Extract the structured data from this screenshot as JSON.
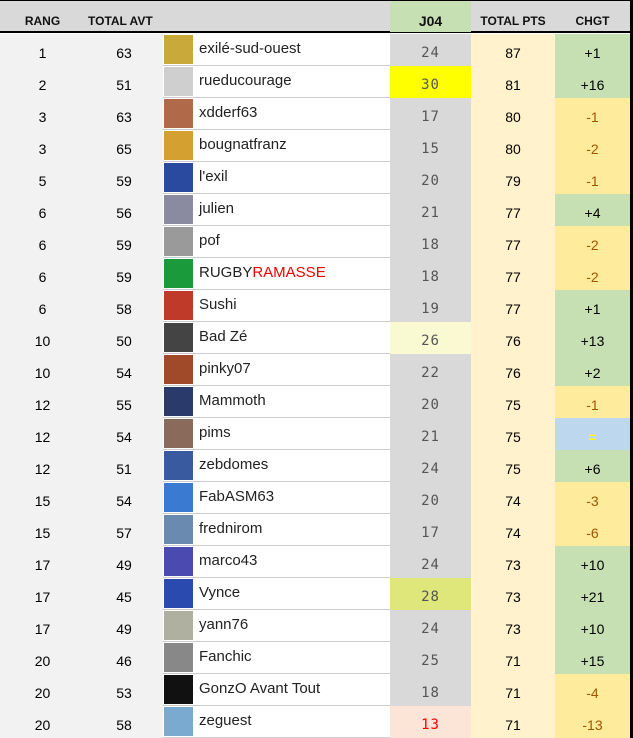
{
  "headers": {
    "rang": "RANG",
    "total_avt": "TOTAL AVT",
    "j04": "J04",
    "total_pts": "TOTAL PTS",
    "chgt": "CHGT"
  },
  "colors": {
    "positive": "#c6e0b4",
    "negative": "#ffeb9c",
    "equal": "#bdd7ee",
    "j04_default": "#d9d9d9"
  },
  "rows": [
    {
      "rang": "1",
      "avt": "63",
      "name": "exilé-sud-ouest",
      "j04": "24",
      "pts": "87",
      "chgt": "+1",
      "avatar": "#c9a93a"
    },
    {
      "rang": "2",
      "avt": "51",
      "name": "rueducourage",
      "j04": "30",
      "pts": "81",
      "chgt": "+16",
      "j04_bg": "#ffff00",
      "avatar": "#cfcfcf"
    },
    {
      "rang": "3",
      "avt": "63",
      "name": "xdderf63",
      "j04": "17",
      "pts": "80",
      "chgt": "-1",
      "avatar": "#b06a4a"
    },
    {
      "rang": "3",
      "avt": "65",
      "name": "bougnatfranz",
      "j04": "15",
      "pts": "80",
      "chgt": "-2",
      "avatar": "#d4a030"
    },
    {
      "rang": "5",
      "avt": "59",
      "name": "l'exil",
      "j04": "20",
      "pts": "79",
      "chgt": "-1",
      "avatar": "#2a4aa0"
    },
    {
      "rang": "6",
      "avt": "56",
      "name": "julien",
      "j04": "21",
      "pts": "77",
      "chgt": "+4",
      "avatar": "#8a8aa0"
    },
    {
      "rang": "6",
      "avt": "59",
      "name": "pof",
      "j04": "18",
      "pts": "77",
      "chgt": "-2",
      "avatar": "#9a9a9a"
    },
    {
      "rang": "6",
      "avt": "59",
      "name": "RUGBY",
      "name_red": "RAMASSE",
      "j04": "18",
      "pts": "77",
      "chgt": "-2",
      "avatar": "#1a9a3a"
    },
    {
      "rang": "6",
      "avt": "58",
      "name": "Sushi",
      "j04": "19",
      "pts": "77",
      "chgt": "+1",
      "avatar": "#c03a2a"
    },
    {
      "rang": "10",
      "avt": "50",
      "name": "Bad Zé",
      "j04": "26",
      "pts": "76",
      "chgt": "+13",
      "j04_bg": "#f9fad2",
      "avatar": "#444"
    },
    {
      "rang": "10",
      "avt": "54",
      "name": "pinky07",
      "j04": "22",
      "pts": "76",
      "chgt": "+2",
      "avatar": "#a04a2a"
    },
    {
      "rang": "12",
      "avt": "55",
      "name": "Mammoth",
      "j04": "20",
      "pts": "75",
      "chgt": "-1",
      "avatar": "#2a3a6a"
    },
    {
      "rang": "12",
      "avt": "54",
      "name": "pims",
      "j04": "21",
      "pts": "75",
      "chgt": "=",
      "avatar": "#8a6a5a"
    },
    {
      "rang": "12",
      "avt": "51",
      "name": "zebdomes",
      "j04": "24",
      "pts": "75",
      "chgt": "+6",
      "avatar": "#3a5aa0"
    },
    {
      "rang": "15",
      "avt": "54",
      "name": "FabASM63",
      "j04": "20",
      "pts": "74",
      "chgt": "-3",
      "avatar": "#3a7ad0"
    },
    {
      "rang": "15",
      "avt": "57",
      "name": "frednirom",
      "j04": "17",
      "pts": "74",
      "chgt": "-6",
      "avatar": "#6a8ab0"
    },
    {
      "rang": "17",
      "avt": "49",
      "name": "marco43",
      "j04": "24",
      "pts": "73",
      "chgt": "+10",
      "avatar": "#4a4ab0"
    },
    {
      "rang": "17",
      "avt": "45",
      "name": "Vynce",
      "j04": "28",
      "pts": "73",
      "chgt": "+21",
      "j04_bg": "#dfe67a",
      "avatar": "#2a4ab0"
    },
    {
      "rang": "17",
      "avt": "49",
      "name": "yann76",
      "j04": "24",
      "pts": "73",
      "chgt": "+10",
      "avatar": "#b0b0a0"
    },
    {
      "rang": "20",
      "avt": "46",
      "name": "Fanchic",
      "j04": "25",
      "pts": "71",
      "chgt": "+15",
      "avatar": "#888"
    },
    {
      "rang": "20",
      "avt": "53",
      "name": "GonzO Avant Tout",
      "j04": "18",
      "pts": "71",
      "chgt": "-4",
      "avatar": "#111"
    },
    {
      "rang": "20",
      "avt": "58",
      "name": "zeguest",
      "j04": "13",
      "pts": "71",
      "chgt": "-13",
      "j04_bg": "#fce4d6",
      "j04_color": "#ff0000",
      "avatar": "#7aaad0"
    }
  ]
}
